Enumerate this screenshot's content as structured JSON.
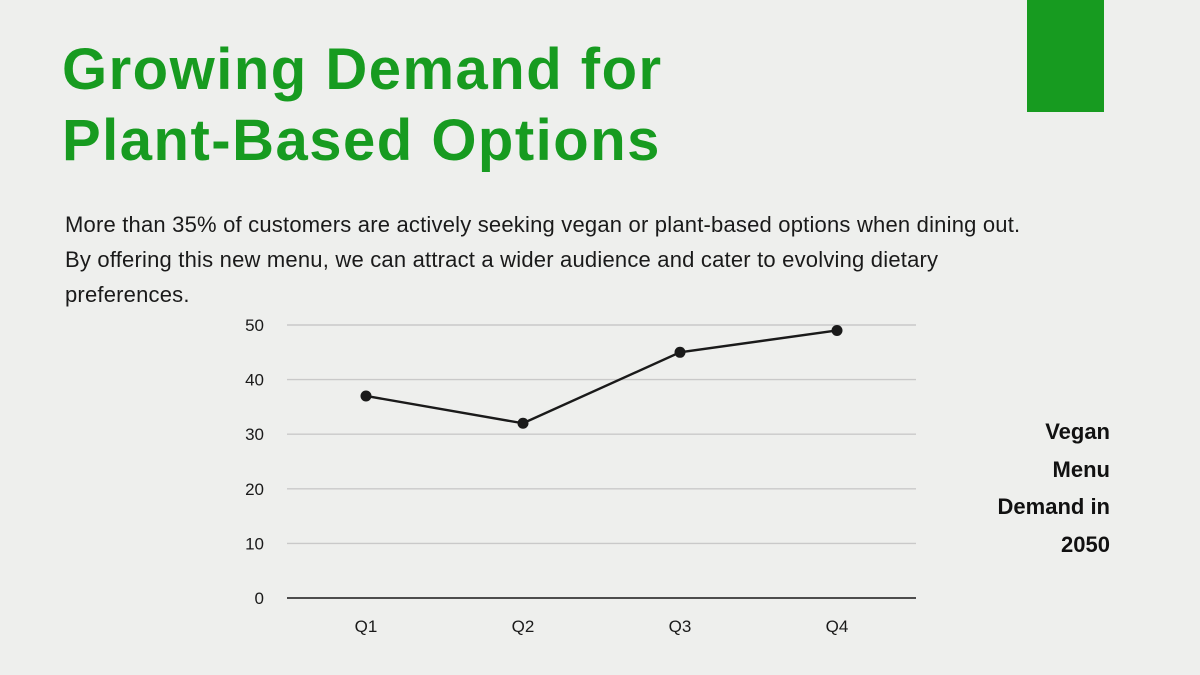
{
  "slide": {
    "title_lines": [
      "Growing Demand for",
      "Plant-Based Options"
    ],
    "intro_lines": [
      "More than 35% of customers are actively seeking vegan or plant-based options when dining out.",
      "By offering this new menu, we can attract a wider audience and cater to evolving dietary",
      "preferences."
    ]
  },
  "side_title": {
    "lines": [
      "Vegan",
      "Menu",
      "Demand in",
      "2050"
    ]
  },
  "colors": {
    "accent_green": "#179b20",
    "text": "#1a1a1a",
    "background": "#eeefed",
    "gridline": "#c9c9c9",
    "zero_axis": "#4d4d4d",
    "line": "#1a1a1a"
  },
  "chart_data": {
    "type": "line",
    "title": "Vegan Menu Demand in 2050",
    "categories": [
      "Q1",
      "Q2",
      "Q3",
      "Q4"
    ],
    "values": [
      37,
      32,
      45,
      49
    ],
    "yticks": [
      0,
      10,
      20,
      30,
      40,
      50
    ],
    "ylim": [
      0,
      50
    ],
    "xlabel": "",
    "ylabel": "",
    "grid": true,
    "legend_position": "none",
    "marker": "circle"
  }
}
